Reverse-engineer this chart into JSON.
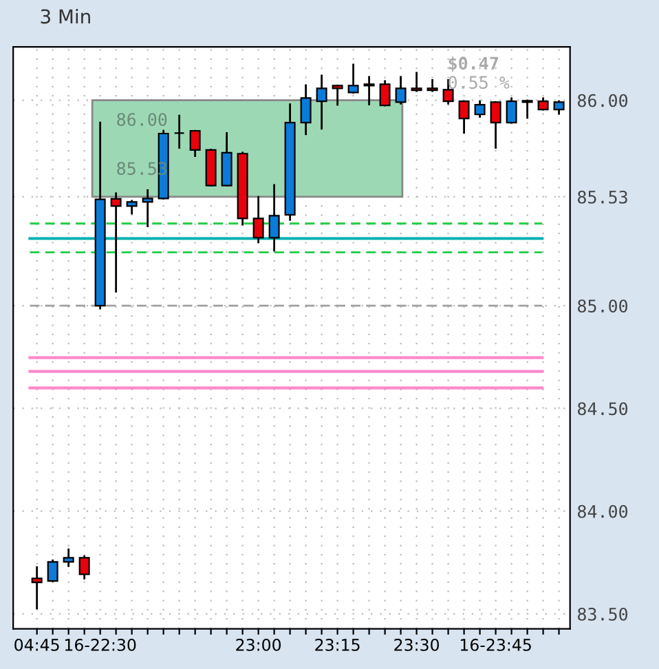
{
  "chart_data": {
    "type": "candlestick",
    "title": "3 Min",
    "categories": [
      "04:45",
      null,
      null,
      null,
      "16-22:30",
      null,
      null,
      null,
      null,
      null,
      null,
      null,
      null,
      null,
      "23:00",
      null,
      null,
      null,
      null,
      "23:15",
      null,
      null,
      null,
      null,
      "23:30",
      null,
      null,
      null,
      null,
      "16-23:45",
      null,
      null,
      null,
      null
    ],
    "ohlc": [
      [
        83.673,
        83.727,
        83.527,
        83.653
      ],
      [
        83.66,
        83.76,
        83.66,
        83.753
      ],
      [
        83.753,
        83.813,
        83.733,
        83.773
      ],
      [
        83.773,
        83.78,
        83.673,
        83.693
      ],
      [
        85.0,
        85.891,
        84.987,
        85.518
      ],
      [
        85.52,
        85.547,
        85.069,
        85.485
      ],
      [
        85.485,
        85.51,
        85.449,
        85.505
      ],
      [
        85.505,
        85.562,
        85.387,
        85.522
      ],
      [
        85.522,
        85.851,
        85.522,
        85.838
      ],
      [
        85.84,
        85.925,
        85.769,
        85.84
      ],
      [
        85.851,
        85.851,
        85.729,
        85.758
      ],
      [
        85.758,
        85.76,
        85.585,
        85.585
      ],
      [
        85.585,
        85.84,
        85.585,
        85.745
      ],
      [
        85.74,
        85.745,
        85.395,
        85.425
      ],
      [
        85.425,
        85.529,
        85.309,
        85.331
      ],
      [
        85.331,
        85.587,
        85.269,
        85.438
      ],
      [
        85.442,
        85.98,
        85.418,
        85.891
      ],
      [
        85.891,
        86.073,
        85.835,
        86.011
      ],
      [
        85.995,
        86.12,
        85.862,
        86.058
      ],
      [
        86.071,
        86.071,
        85.978,
        86.058
      ],
      [
        86.038,
        86.173,
        86.038,
        86.071
      ],
      [
        86.071,
        86.113,
        85.98,
        86.078
      ],
      [
        86.078,
        86.093,
        85.975,
        85.975
      ],
      [
        85.991,
        86.113,
        85.984,
        86.058
      ],
      [
        86.058,
        86.133,
        86.045,
        86.049
      ],
      [
        86.058,
        86.098,
        86.045,
        86.049
      ],
      [
        86.051,
        86.098,
        85.984,
        85.995
      ],
      [
        85.995,
        85.995,
        85.842,
        85.911
      ],
      [
        85.931,
        85.995,
        85.92,
        85.978
      ],
      [
        85.991,
        85.991,
        85.769,
        85.891
      ],
      [
        85.891,
        86.009,
        85.891,
        85.995
      ],
      [
        85.998,
        85.998,
        85.915,
        85.991
      ],
      [
        85.995,
        86.009,
        85.955,
        85.955
      ],
      [
        85.955,
        85.995,
        85.935,
        85.991
      ]
    ],
    "colors": [
      "#e8000b",
      "#0a7bd8",
      "#0a7bd8",
      "#e8000b",
      "#0a7bd8",
      "#e8000b",
      "#0a7bd8",
      "#0a7bd8",
      "#0a7bd8",
      "#000000",
      "#e8000b",
      "#e8000b",
      "#0a7bd8",
      "#e8000b",
      "#e8000b",
      "#0a7bd8",
      "#0a7bd8",
      "#0a7bd8",
      "#0a7bd8",
      "#e8000b",
      "#0a7bd8",
      "#0a7bd8",
      "#e8000b",
      "#0a7bd8",
      "#e8000b",
      "#e8000b",
      "#e8000b",
      "#e8000b",
      "#0a7bd8",
      "#e8000b",
      "#0a7bd8",
      "#e8000b",
      "#e8000b",
      "#0a7bd8"
    ],
    "ylim": [
      83.427,
      86.26
    ],
    "yticks": [
      {
        "value": 83.5,
        "label": "83.50"
      },
      {
        "value": 84.0,
        "label": "84.00"
      },
      {
        "value": 84.5,
        "label": "84.50"
      },
      {
        "value": 85.0,
        "label": "85.00"
      },
      {
        "value": 85.53,
        "label": "85.53"
      },
      {
        "value": 86.0,
        "label": "86.00"
      }
    ],
    "bands": [
      {
        "axis": "y",
        "from": 85.53,
        "to": 86.0,
        "color": "#9dd8b4"
      }
    ],
    "ref_lines": [
      {
        "axis": "y",
        "value": 85.0,
        "color": "#a0a0a0",
        "line_style": "dashed"
      },
      {
        "axis": "y",
        "value": 85.4,
        "color": "#22cc44",
        "line_style": "dashed"
      },
      {
        "axis": "y",
        "value": 85.26,
        "color": "#22cc44",
        "line_style": "dashed"
      },
      {
        "axis": "y",
        "value": 85.327,
        "color": "#00b0b0",
        "line_style": "solid"
      },
      {
        "axis": "y",
        "value": 84.747,
        "color": "#ff88cc",
        "line_style": "solid"
      },
      {
        "axis": "y",
        "value": 84.68,
        "color": "#ff88cc",
        "line_style": "solid"
      },
      {
        "axis": "y",
        "value": 84.6,
        "color": "#ff88cc",
        "line_style": "solid"
      }
    ],
    "annotations": [
      {
        "text": "86.00",
        "y": 86.0
      },
      {
        "text": "85.53",
        "y": 85.53
      },
      "$0.47",
      "0.55 %"
    ],
    "grid": true
  }
}
